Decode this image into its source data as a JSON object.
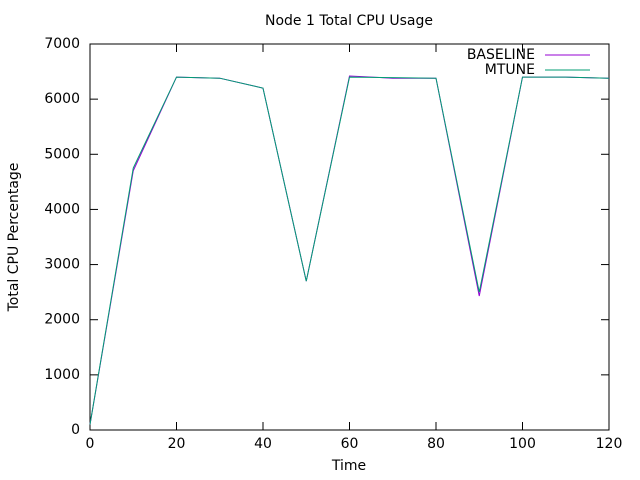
{
  "chart_data": {
    "type": "line",
    "title": "Node 1 Total CPU Usage",
    "x_label": "Time",
    "y_label": "Total CPU Percentage",
    "x": [
      0,
      10,
      20,
      30,
      40,
      50,
      60,
      70,
      80,
      90,
      100,
      110,
      120
    ],
    "series": [
      {
        "name": "BASELINE",
        "color": "#9400d3",
        "values": [
          100,
          4700,
          6400,
          6380,
          6200,
          2700,
          6420,
          6380,
          6380,
          2430,
          6400,
          6400,
          6380
        ]
      },
      {
        "name": "MTUNE",
        "color": "#009e73",
        "values": [
          100,
          4750,
          6400,
          6380,
          6200,
          2700,
          6400,
          6390,
          6380,
          2500,
          6400,
          6400,
          6380
        ]
      }
    ],
    "xlim": [
      0,
      120
    ],
    "xticks": [
      0,
      20,
      40,
      60,
      80,
      100,
      120
    ],
    "ylim": [
      0,
      7000
    ],
    "yticks": [
      0,
      1000,
      2000,
      3000,
      4000,
      5000,
      6000,
      7000
    ],
    "grid": false,
    "legend": "top-right"
  }
}
